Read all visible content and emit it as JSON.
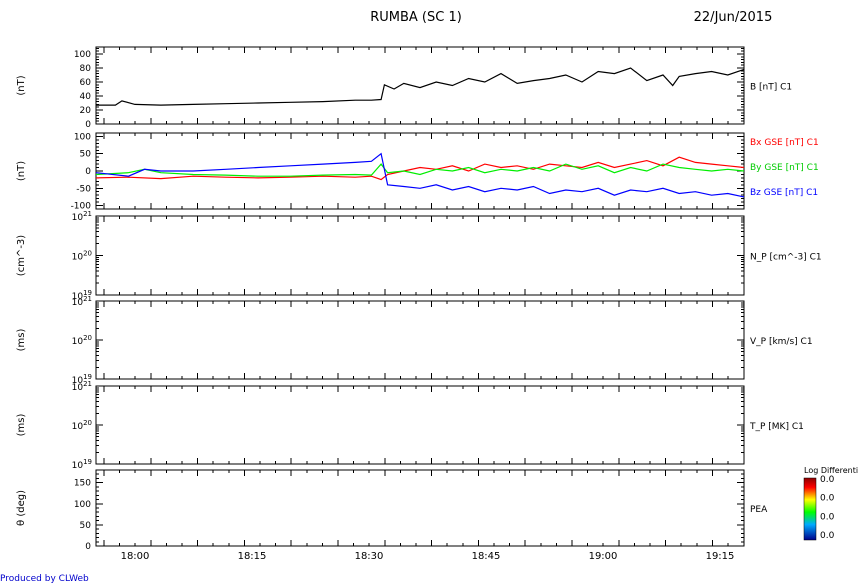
{
  "title": "RUMBA (SC 1)",
  "date": "22/Jun/2015",
  "credit": "Produced by CLWeb",
  "chart_data": [
    {
      "type": "line",
      "name": "panel-b",
      "ylabel": "(nT)",
      "ylim": [
        0,
        110
      ],
      "yticks": [
        0,
        20,
        40,
        60,
        80,
        100
      ],
      "right_labels": [
        {
          "text": "B [nT] C1",
          "color": "#000000"
        }
      ],
      "reference_line": 0,
      "series": [
        {
          "color": "#000000",
          "x": [
            0,
            6,
            8,
            12,
            20,
            30,
            40,
            50,
            60,
            70,
            80,
            85,
            88,
            89,
            92,
            95,
            100,
            105,
            110,
            115,
            120,
            125,
            130,
            135,
            140,
            145,
            150,
            155,
            160,
            165,
            170,
            175,
            178,
            180,
            185,
            190,
            195,
            200
          ],
          "y": [
            27,
            27,
            33,
            28,
            27,
            28,
            29,
            30,
            31,
            32,
            34,
            34,
            35,
            56,
            50,
            58,
            52,
            60,
            55,
            65,
            60,
            72,
            58,
            62,
            65,
            70,
            60,
            75,
            72,
            80,
            62,
            70,
            55,
            68,
            72,
            75,
            70,
            78
          ]
        }
      ]
    },
    {
      "type": "line",
      "name": "panel-bxyz",
      "ylabel": "(nT)",
      "ylim": [
        -110,
        110
      ],
      "yticks": [
        -100,
        -50,
        0,
        50,
        100
      ],
      "right_labels": [
        {
          "text": "Bx GSE [nT] C1",
          "color": "#ff0000"
        },
        {
          "text": "By GSE [nT] C1",
          "color": "#00cc00"
        },
        {
          "text": "Bz GSE [nT] C1",
          "color": "#0000ff"
        }
      ],
      "series": [
        {
          "color": "#ff0000",
          "x": [
            0,
            10,
            20,
            30,
            40,
            50,
            60,
            70,
            80,
            85,
            88,
            90,
            95,
            100,
            105,
            110,
            115,
            120,
            125,
            130,
            135,
            140,
            145,
            150,
            155,
            160,
            165,
            170,
            175,
            180,
            185,
            190,
            195,
            200
          ],
          "y": [
            -20,
            -18,
            -22,
            -15,
            -18,
            -20,
            -18,
            -15,
            -18,
            -15,
            -25,
            -10,
            0,
            10,
            5,
            15,
            0,
            20,
            10,
            15,
            5,
            20,
            15,
            10,
            25,
            10,
            20,
            30,
            15,
            40,
            25,
            20,
            15,
            10
          ]
        },
        {
          "color": "#00ee00",
          "x": [
            0,
            10,
            15,
            20,
            30,
            40,
            50,
            60,
            70,
            80,
            85,
            88,
            90,
            95,
            100,
            105,
            110,
            115,
            120,
            125,
            130,
            135,
            140,
            145,
            150,
            155,
            160,
            165,
            170,
            175,
            180,
            185,
            190,
            195,
            200
          ],
          "y": [
            -10,
            -5,
            5,
            -5,
            -10,
            -12,
            -15,
            -15,
            -12,
            -10,
            -12,
            20,
            -5,
            0,
            -10,
            5,
            0,
            10,
            -5,
            5,
            0,
            10,
            0,
            20,
            5,
            15,
            -5,
            10,
            0,
            20,
            10,
            5,
            0,
            5,
            0
          ]
        },
        {
          "color": "#0000ff",
          "x": [
            0,
            10,
            15,
            20,
            30,
            40,
            50,
            60,
            70,
            80,
            85,
            88,
            90,
            95,
            100,
            105,
            110,
            115,
            120,
            125,
            130,
            135,
            140,
            145,
            150,
            155,
            160,
            165,
            170,
            175,
            180,
            185,
            190,
            195,
            200
          ],
          "y": [
            -5,
            -15,
            5,
            0,
            0,
            5,
            10,
            15,
            20,
            25,
            28,
            50,
            -40,
            -45,
            -50,
            -40,
            -55,
            -45,
            -60,
            -50,
            -55,
            -45,
            -65,
            -55,
            -60,
            -50,
            -70,
            -55,
            -60,
            -50,
            -65,
            -60,
            -70,
            -65,
            -75
          ]
        }
      ]
    },
    {
      "type": "line",
      "name": "panel-np",
      "ylabel": "(cm^-3)",
      "ylim_log": [
        19,
        21
      ],
      "tick_labels": [
        "10^21",
        "10^20",
        "10^19"
      ],
      "right_labels": [
        {
          "text": "N_P [cm^-3] C1",
          "color": "#000000"
        }
      ],
      "series": []
    },
    {
      "type": "line",
      "name": "panel-vp",
      "ylabel": "(ms)",
      "ylim_log": [
        19,
        21
      ],
      "tick_labels": [
        "10^21",
        "10^20",
        "10^19"
      ],
      "right_labels": [
        {
          "text": "V_P [km/s] C1",
          "color": "#000000"
        }
      ],
      "series": []
    },
    {
      "type": "line",
      "name": "panel-tp",
      "ylabel": "(ms)",
      "ylim_log": [
        19,
        21
      ],
      "tick_labels": [
        "10^21",
        "10^20",
        "10^19"
      ],
      "right_labels": [
        {
          "text": "T_P [MK] C1",
          "color": "#000000"
        }
      ],
      "series": []
    },
    {
      "type": "heatmap",
      "name": "panel-pea",
      "ylabel": "θ (deg)",
      "ylim": [
        0,
        180
      ],
      "yticks": [
        0,
        50,
        100,
        150
      ],
      "right_labels": [
        {
          "text": "PEA",
          "color": "#000000"
        }
      ],
      "colorbar": {
        "title": "Log Differenti",
        "labels": [
          "0.0",
          "0.0",
          "0.0",
          "0.0"
        ]
      }
    }
  ],
  "x_axis": {
    "xlim": [
      0,
      200
    ],
    "tick_labels": [
      "18:00",
      "18:15",
      "18:30",
      "18:45",
      "19:00",
      "19:15"
    ],
    "tick_positions": [
      15,
      60,
      105,
      150,
      195,
      240
    ]
  },
  "colors": {
    "axis": "#000000",
    "credit": "#0000cc"
  }
}
